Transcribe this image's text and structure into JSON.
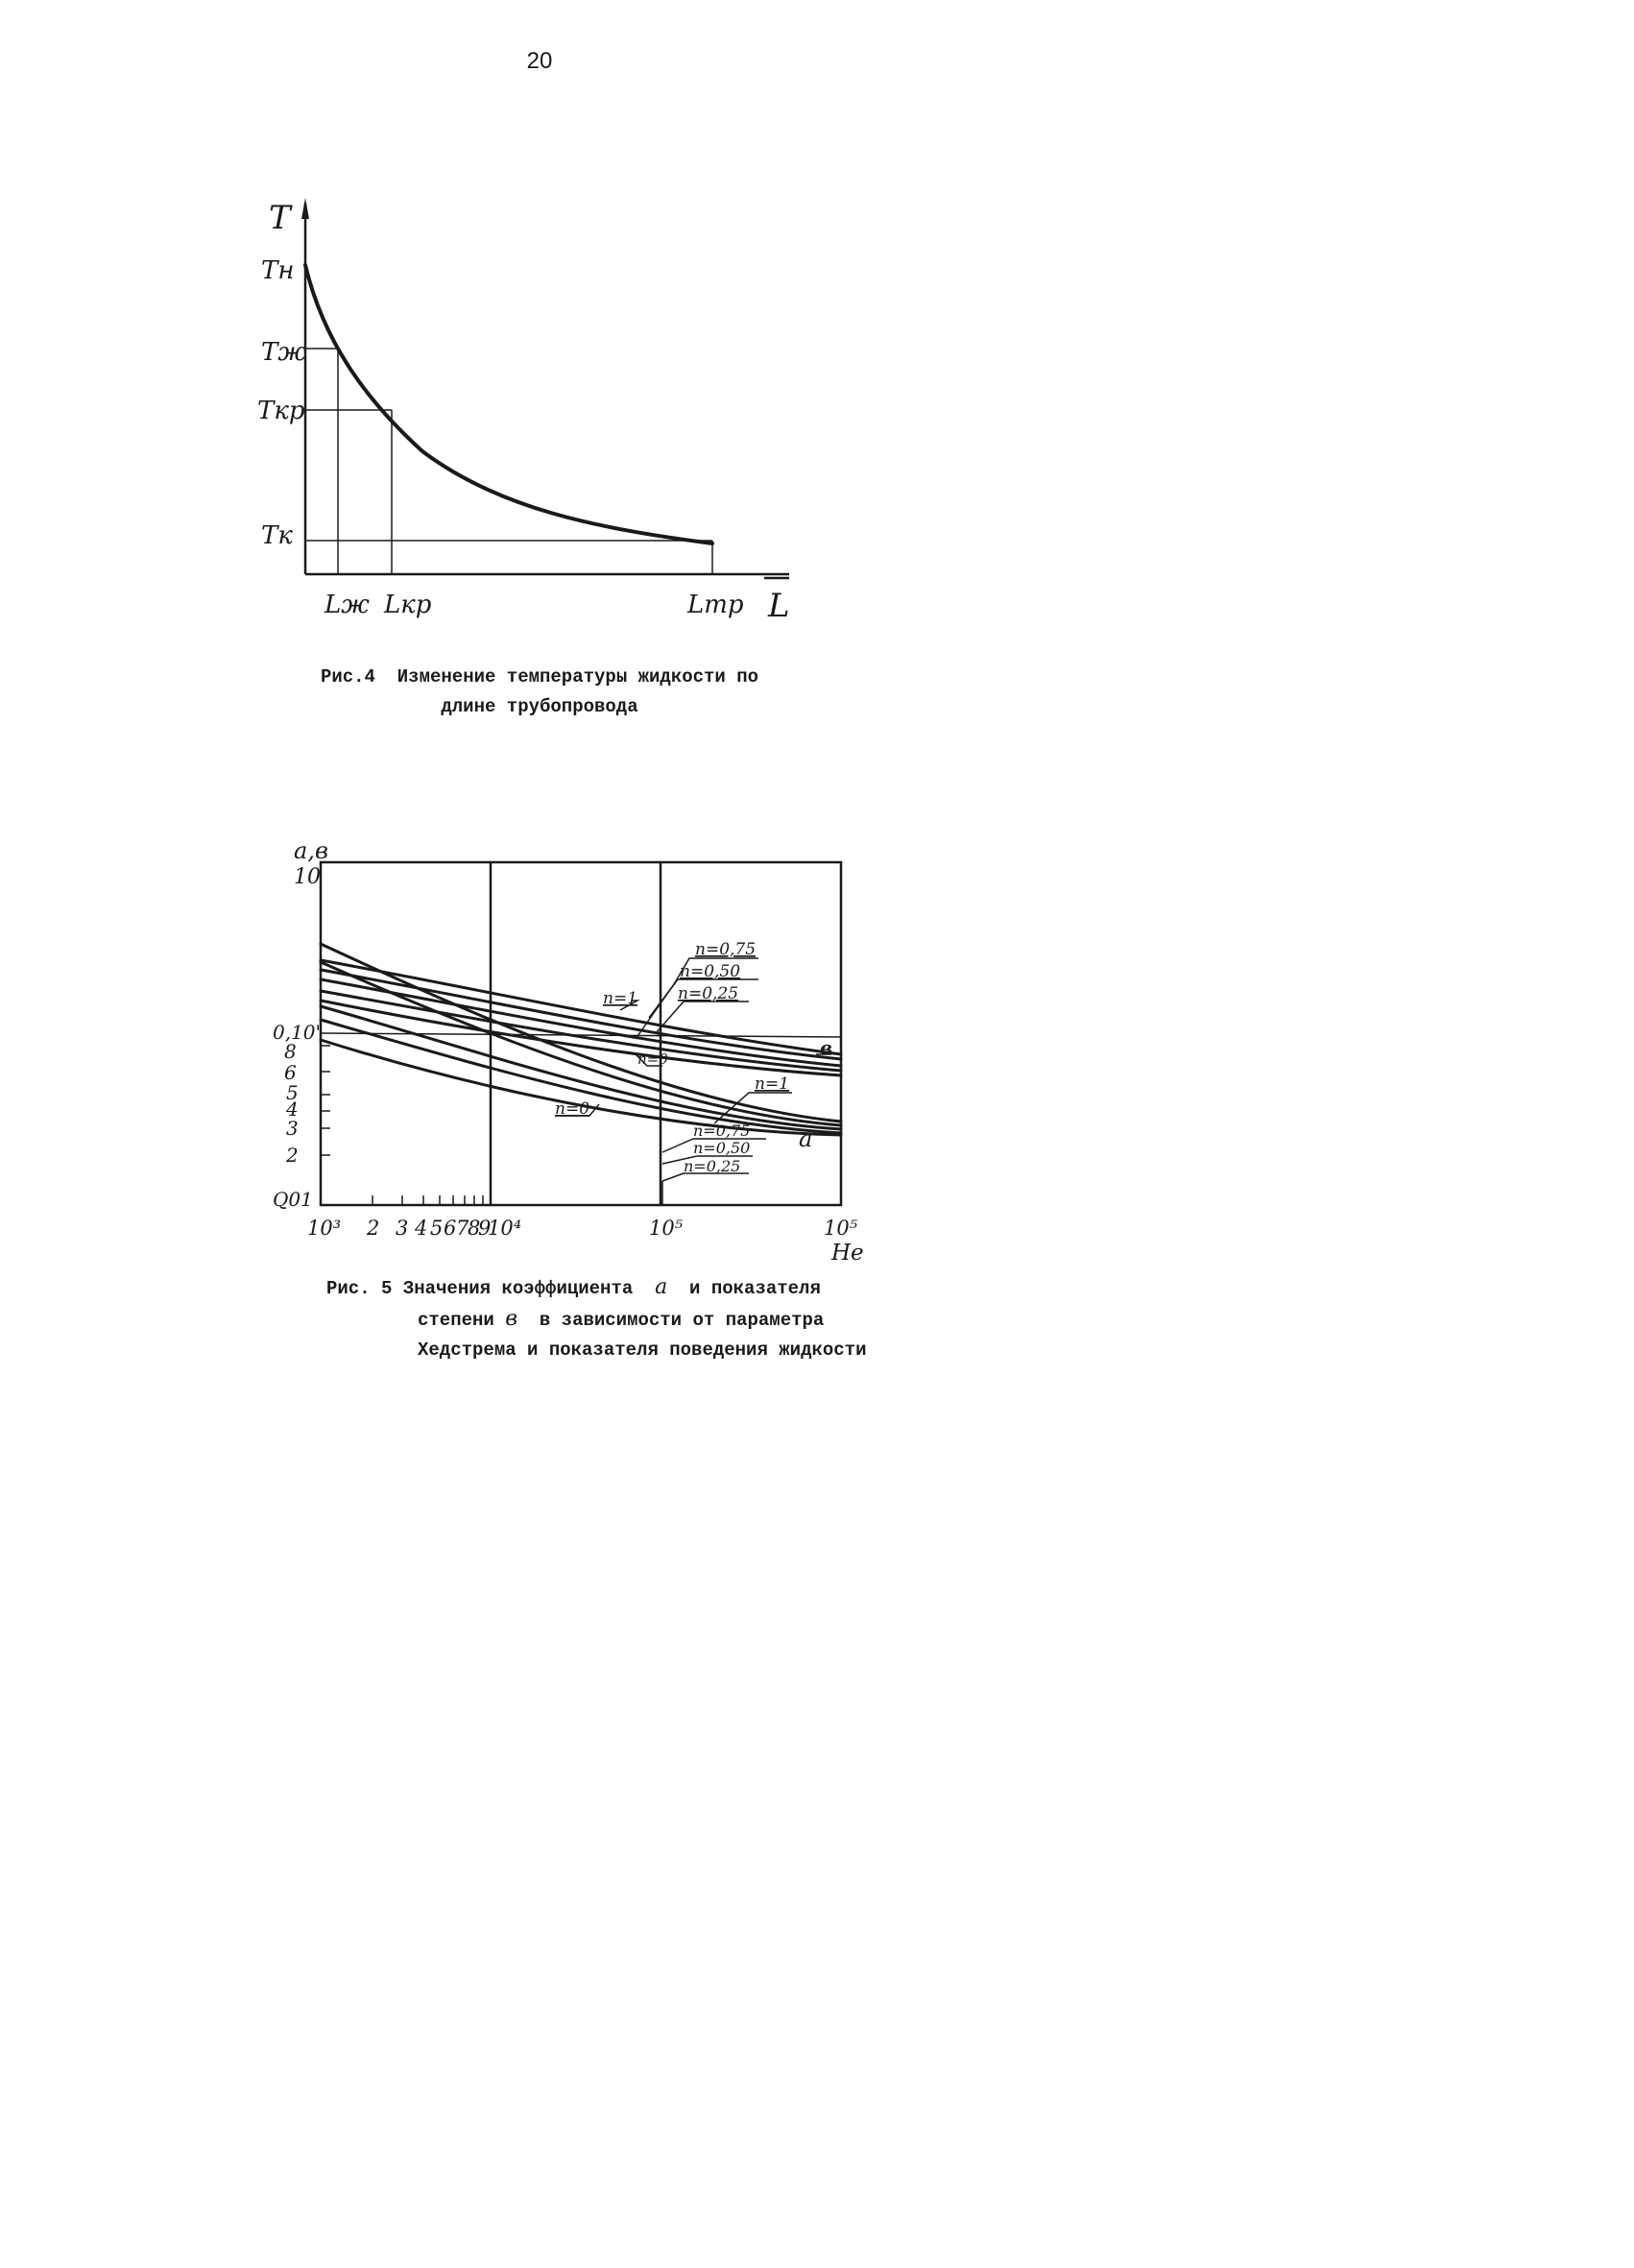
{
  "page_number": "20",
  "figure4": {
    "caption_prefix": "Рис.4",
    "caption_line1": "Изменение температуры жидкости по",
    "caption_line2": "длине трубопровода",
    "y_axis_label": "T",
    "x_axis_label": "L",
    "y_labels": [
      "Tн",
      "Tж",
      "Tкр",
      "Tк"
    ],
    "x_labels": [
      "Lж",
      "Lкр",
      "Lтр"
    ]
  },
  "figure5": {
    "caption_prefix": "Рис. 5",
    "caption_line1": "Значения коэффициента",
    "caption_symbol_a": "a",
    "caption_line1_tail": "и показателя",
    "caption_line2_head": "степени",
    "caption_symbol_b": "в",
    "caption_line2_tail": "в зависимости от параметра",
    "caption_line3": "Хедстрема и показателя поведения жидкости",
    "y_axis_label": "a,в",
    "x_axis_label": "He",
    "y_tick_labels": [
      "10",
      "0,10'",
      "8",
      "6",
      "5",
      "4",
      "3",
      "2",
      "Q01"
    ],
    "x_tick_labels": [
      "10³",
      "2",
      "3",
      "4",
      "5",
      "6",
      "7",
      "8",
      "9",
      "10⁴",
      "10⁵",
      "10⁵"
    ],
    "b_labels": [
      "n=0,75",
      "n=0,50",
      "n=0,25",
      "n=1",
      "n=0"
    ],
    "a_labels": [
      "n=1",
      "n=0,75",
      "n=0,50",
      "n=0,25",
      "n=0"
    ],
    "curve_label_b": "в",
    "curve_label_a": "a"
  }
}
